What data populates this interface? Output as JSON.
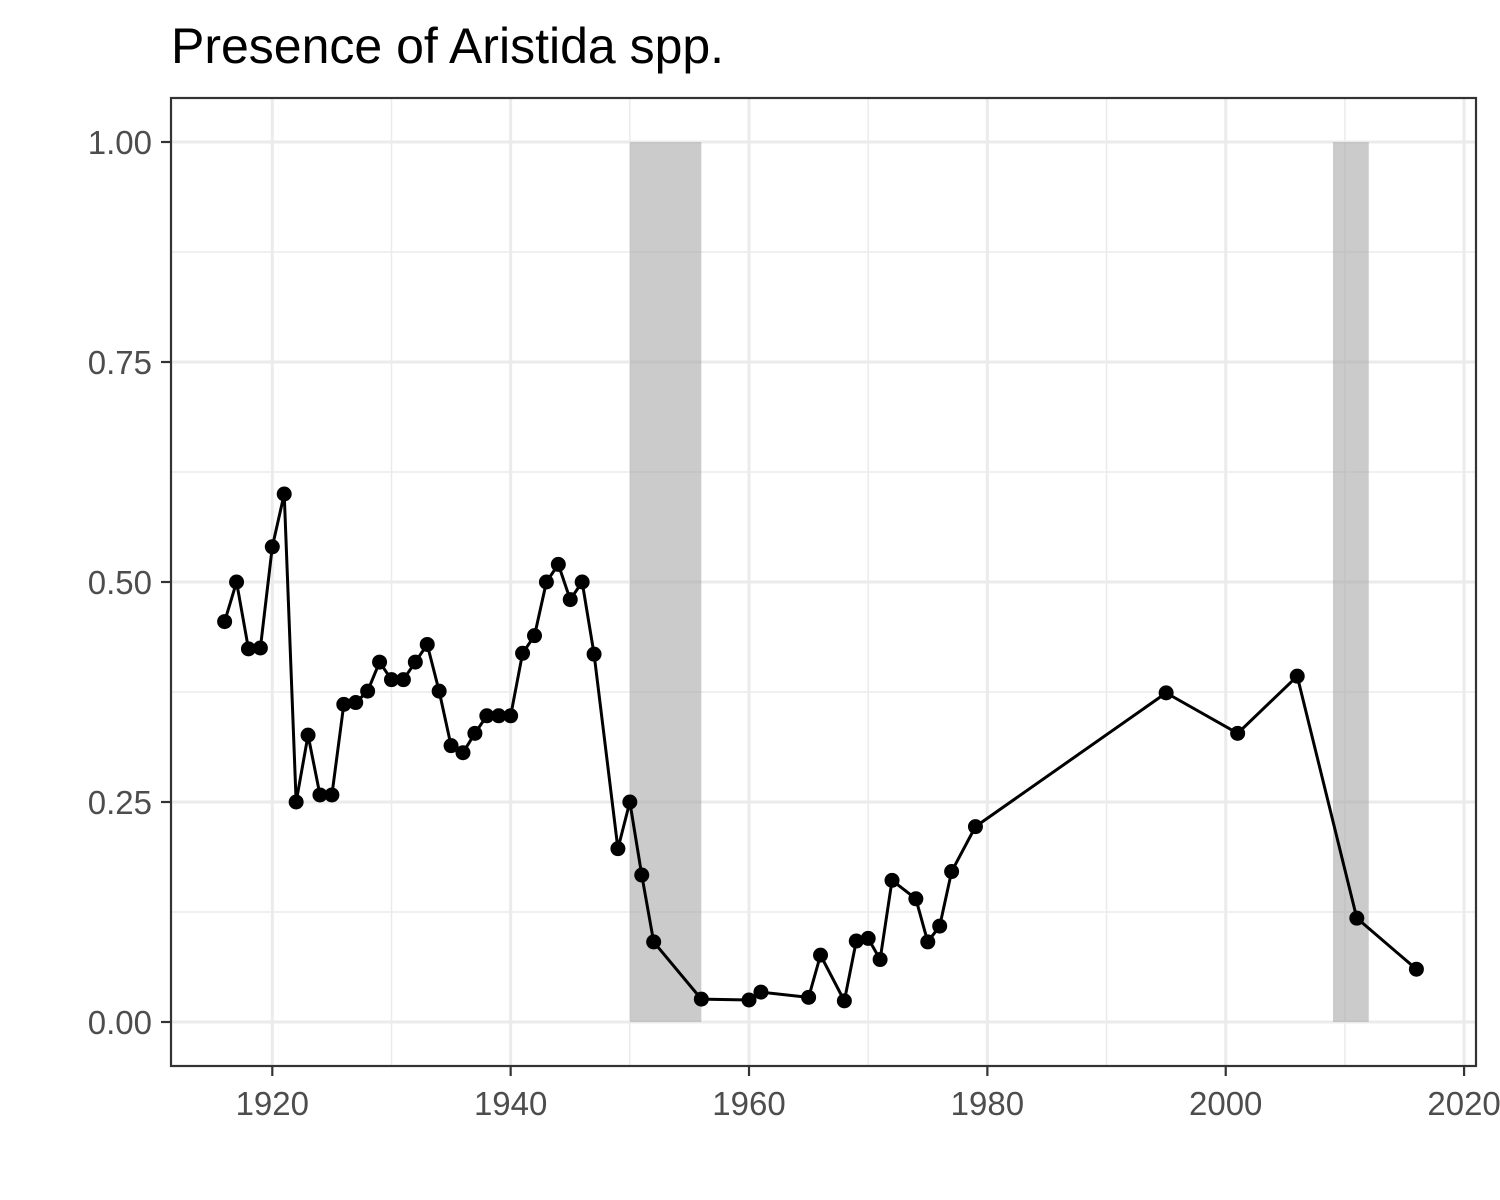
{
  "chart_data": {
    "type": "line",
    "title": "Presence of Aristida spp.",
    "xlabel": "",
    "ylabel": "",
    "xlim": [
      1911.5,
      2021
    ],
    "ylim": [
      -0.05,
      1.05
    ],
    "x_ticks": [
      1920,
      1940,
      1960,
      1980,
      2000,
      2020
    ],
    "x_tick_labels": [
      "1920",
      "1940",
      "1960",
      "1980",
      "2000",
      "2020"
    ],
    "x_minor_ticks": [
      1930,
      1950,
      1970,
      1990,
      2010
    ],
    "y_ticks": [
      0,
      0.25,
      0.5,
      0.75,
      1.0
    ],
    "y_tick_labels": [
      "0.00",
      "0.25",
      "0.50",
      "0.75",
      "1.00"
    ],
    "y_minor_ticks": [
      0.125,
      0.375,
      0.625,
      0.875
    ],
    "grid": true,
    "shaded_periods": [
      {
        "xmin": 1950,
        "xmax": 1956,
        "ymin": 0,
        "ymax": 1.0
      },
      {
        "xmin": 2009,
        "xmax": 2012,
        "ymin": 0,
        "ymax": 1.0
      }
    ],
    "colors": {
      "line": "#000000",
      "point": "#000000",
      "shade": "#a6a6a6",
      "grid": "#ebebeb",
      "panel_border": "#333333",
      "tick_label": "#4d4d4d"
    },
    "x": [
      1916,
      1917,
      1918,
      1919,
      1920,
      1921,
      1922,
      1923,
      1924,
      1925,
      1926,
      1927,
      1928,
      1929,
      1930,
      1931,
      1932,
      1933,
      1934,
      1935,
      1936,
      1937,
      1938,
      1939,
      1940,
      1941,
      1942,
      1943,
      1944,
      1945,
      1946,
      1947,
      1949,
      1950,
      1951,
      1952,
      1956,
      1960,
      1961,
      1965,
      1966,
      1968,
      1969,
      1970,
      1971,
      1972,
      1974,
      1975,
      1976,
      1977,
      1979,
      1995,
      2001,
      2006,
      2011,
      2016
    ],
    "y": [
      0.455,
      0.5,
      0.424,
      0.425,
      0.54,
      0.6,
      0.25,
      0.326,
      0.258,
      0.258,
      0.361,
      0.363,
      0.376,
      0.409,
      0.389,
      0.389,
      0.409,
      0.429,
      0.376,
      0.314,
      0.306,
      0.328,
      0.348,
      0.348,
      0.348,
      0.419,
      0.439,
      0.5,
      0.52,
      0.48,
      0.5,
      0.418,
      0.197,
      0.25,
      0.167,
      0.091,
      0.026,
      0.025,
      0.034,
      0.028,
      0.076,
      0.024,
      0.092,
      0.095,
      0.071,
      0.161,
      0.14,
      0.091,
      0.109,
      0.171,
      0.222,
      0.374,
      0.328,
      0.393,
      0.118,
      0.06
    ]
  }
}
